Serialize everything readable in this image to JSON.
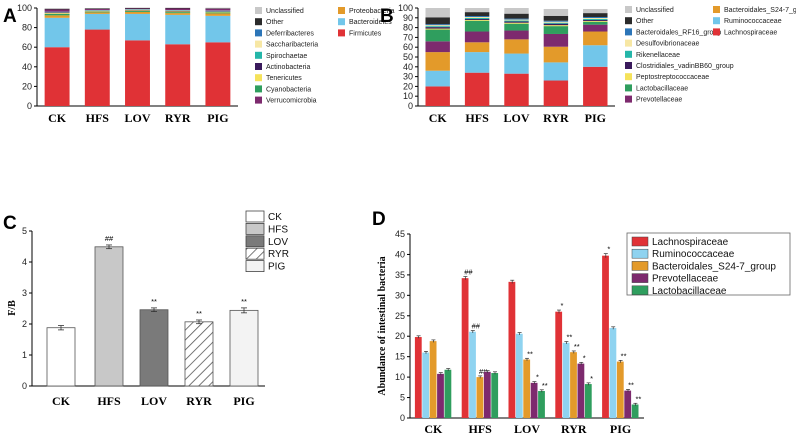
{
  "chart_data": [
    {
      "id": "A",
      "letter": "A",
      "type": "bar",
      "stacked": true,
      "title": "",
      "categories": [
        "CK",
        "HFS",
        "LOV",
        "RYR",
        "PIG"
      ],
      "ylim": [
        0,
        100
      ],
      "yticks": [
        0,
        20,
        40,
        60,
        80,
        100
      ],
      "legend_columns": [
        [
          "Unclassified",
          "Other",
          "Deferribacteres",
          "Saccharibacteria",
          "Spirochaetae",
          "Actinobacteria",
          "Tenericutes",
          "Cyanobacteria",
          "Verrucomicrobia"
        ],
        [
          "Proteobacteria",
          "Bacteroidetes",
          "Firmicutes"
        ]
      ],
      "series": [
        {
          "name": "Firmicutes",
          "color": "#e03236",
          "values": [
            60,
            78,
            67,
            63,
            65
          ]
        },
        {
          "name": "Bacteroidetes",
          "color": "#72c6ea",
          "values": [
            30,
            16,
            27,
            30,
            27
          ]
        },
        {
          "name": "Proteobacteria",
          "color": "#e39a2a",
          "values": [
            2.5,
            1.5,
            2,
            1.8,
            2.5
          ]
        },
        {
          "name": "Cyanobacteria",
          "color": "#2f9e5e",
          "values": [
            1.5,
            0.8,
            1,
            1,
            1
          ]
        },
        {
          "name": "Tenericutes",
          "color": "#f5e25a",
          "values": [
            0.8,
            0.5,
            0.6,
            0.7,
            0.6
          ]
        },
        {
          "name": "Actinobacteria",
          "color": "#3a1a5c",
          "values": [
            0.6,
            0.4,
            0.4,
            0.5,
            0.5
          ]
        },
        {
          "name": "Spirochaetae",
          "color": "#25b6a9",
          "values": [
            0.3,
            0.3,
            0.3,
            0.3,
            0.3
          ]
        },
        {
          "name": "Saccharibacteria",
          "color": "#f7e7a4",
          "values": [
            0.3,
            0.3,
            0.3,
            0.3,
            0.3
          ]
        },
        {
          "name": "Deferribacteres",
          "color": "#2c75b8",
          "values": [
            0.3,
            0.2,
            0.3,
            0.3,
            0.3
          ]
        },
        {
          "name": "Verrucomicrobia",
          "color": "#7d2a6e",
          "values": [
            2.2,
            1,
            0.6,
            1.6,
            1.8
          ]
        },
        {
          "name": "Other",
          "color": "#2b2b2b",
          "values": [
            0.5,
            0.5,
            0.5,
            0.5,
            0.5
          ]
        },
        {
          "name": "Unclassified",
          "color": "#c8c8c8",
          "values": [
            1,
            0.5,
            0.5,
            0.5,
            0.5
          ]
        }
      ]
    },
    {
      "id": "B",
      "letter": "B",
      "type": "bar",
      "stacked": true,
      "title": "",
      "categories": [
        "CK",
        "HFS",
        "LOV",
        "RYR",
        "PIG"
      ],
      "ylim": [
        0,
        100
      ],
      "yticks": [
        0,
        10,
        20,
        30,
        40,
        50,
        60,
        70,
        80,
        90,
        100
      ],
      "legend_columns": [
        [
          "Unclassified",
          "Other",
          "Bacteroidales_RF16_group",
          "Desulfovibrionaceae",
          "Rikenellaceae",
          "Clostridiales_vadinBB60_group",
          "Peptostreptococcaceae",
          "Lactobacillaceae",
          "Prevotellaceae"
        ],
        [
          "Bacteroidales_S24-7_group",
          "Ruminococcaceae",
          "Lachnospiraceae"
        ]
      ],
      "series": [
        {
          "name": "Lachnospiraceae",
          "color": "#e03236",
          "values": [
            20,
            34,
            33,
            26,
            40
          ]
        },
        {
          "name": "Ruminococcaceae",
          "color": "#72c6ea",
          "values": [
            16,
            21,
            20.5,
            18.5,
            22
          ]
        },
        {
          "name": "Bacteroidales_S24-7_group",
          "color": "#e39a2a",
          "values": [
            19,
            10,
            14.5,
            16,
            14
          ]
        },
        {
          "name": "Prevotellaceae",
          "color": "#7d2a6e",
          "values": [
            11,
            11,
            9,
            13,
            7
          ]
        },
        {
          "name": "Lactobacillaceae",
          "color": "#2f9e5e",
          "values": [
            12,
            11,
            7,
            8,
            3
          ]
        },
        {
          "name": "Peptostreptococcaceae",
          "color": "#f5e25a",
          "values": [
            1,
            0.8,
            1,
            1,
            0.8
          ]
        },
        {
          "name": "Clostridiales_vadinBB60_group",
          "color": "#3a1a5c",
          "values": [
            1.5,
            1,
            1.2,
            1.5,
            1
          ]
        },
        {
          "name": "Rikenellaceae",
          "color": "#25b6a9",
          "values": [
            1,
            1,
            1,
            1,
            1
          ]
        },
        {
          "name": "Desulfovibrionaceae",
          "color": "#f7e7a4",
          "values": [
            1,
            1,
            1,
            1,
            1
          ]
        },
        {
          "name": "Bacteroidales_RF16_group",
          "color": "#2c75b8",
          "values": [
            1,
            1,
            1,
            1,
            1
          ]
        },
        {
          "name": "Other",
          "color": "#2b2b2b",
          "values": [
            7,
            4,
            5,
            5,
            4
          ]
        },
        {
          "name": "Unclassified",
          "color": "#c8c8c8",
          "values": [
            9.5,
            4.2,
            5.8,
            7,
            4.2
          ]
        }
      ]
    },
    {
      "id": "C",
      "letter": "C",
      "type": "bar",
      "title": "",
      "ylabel": "F/B",
      "categories": [
        "CK",
        "HFS",
        "LOV",
        "RYR",
        "PIG"
      ],
      "ylim": [
        0,
        5
      ],
      "yticks": [
        0,
        1,
        2,
        3,
        4,
        5
      ],
      "values": [
        1.88,
        4.49,
        2.46,
        2.07,
        2.44
      ],
      "errors": [
        0.07,
        0.06,
        0.06,
        0.06,
        0.08
      ],
      "annotations": [
        "",
        "##",
        "**",
        "**",
        "**"
      ],
      "legend": [
        "CK",
        "HFS",
        "LOV",
        "RYR",
        "PIG"
      ],
      "colors": [
        "#ffffff",
        "#c8c8c8",
        "#7a7a7a",
        "hatch",
        "#f3f3f3"
      ]
    },
    {
      "id": "D",
      "letter": "D",
      "type": "bar",
      "title": "",
      "ylabel": "Abundance of intestinal bacteria",
      "categories": [
        "CK",
        "HFS",
        "LOV",
        "RYR",
        "PIG"
      ],
      "ylim": [
        0,
        45
      ],
      "yticks": [
        0,
        5,
        10,
        15,
        20,
        25,
        30,
        35,
        40,
        45
      ],
      "series": [
        {
          "name": "Lachnospiraceae",
          "color": "#e03236",
          "values": [
            19.8,
            34.2,
            33.3,
            26.0,
            39.7
          ],
          "errors": [
            0.3,
            0.4,
            0.4,
            0.4,
            0.5
          ],
          "annotations": [
            "",
            "##",
            "",
            "*",
            "*"
          ]
        },
        {
          "name": "Ruminococcaceae",
          "color": "#8fd3f0",
          "values": [
            16.0,
            21.1,
            20.6,
            18.4,
            22.0
          ],
          "errors": [
            0.3,
            0.3,
            0.3,
            0.3,
            0.3
          ],
          "annotations": [
            "",
            "##",
            "",
            "**",
            ""
          ]
        },
        {
          "name": "Bacteroidales_S24-7_group",
          "color": "#e39a2a",
          "values": [
            18.8,
            10.0,
            14.3,
            16.1,
            13.8
          ],
          "errors": [
            0.3,
            0.3,
            0.3,
            0.3,
            0.3
          ],
          "annotations": [
            "",
            "##",
            "**",
            "**",
            "**"
          ]
        },
        {
          "name": "Prevotellaceae",
          "color": "#7d2a6e",
          "values": [
            10.8,
            11.3,
            8.6,
            13.3,
            6.7
          ],
          "errors": [
            0.3,
            0.3,
            0.3,
            0.3,
            0.3
          ],
          "annotations": [
            "",
            "",
            "*",
            "*",
            "**"
          ]
        },
        {
          "name": "Lactobacillaceae",
          "color": "#2f9e5e",
          "values": [
            11.8,
            11.0,
            6.6,
            8.3,
            3.3
          ],
          "errors": [
            0.3,
            0.3,
            0.3,
            0.3,
            0.3
          ],
          "annotations": [
            "",
            "",
            "**",
            "*",
            "**"
          ]
        }
      ]
    }
  ]
}
